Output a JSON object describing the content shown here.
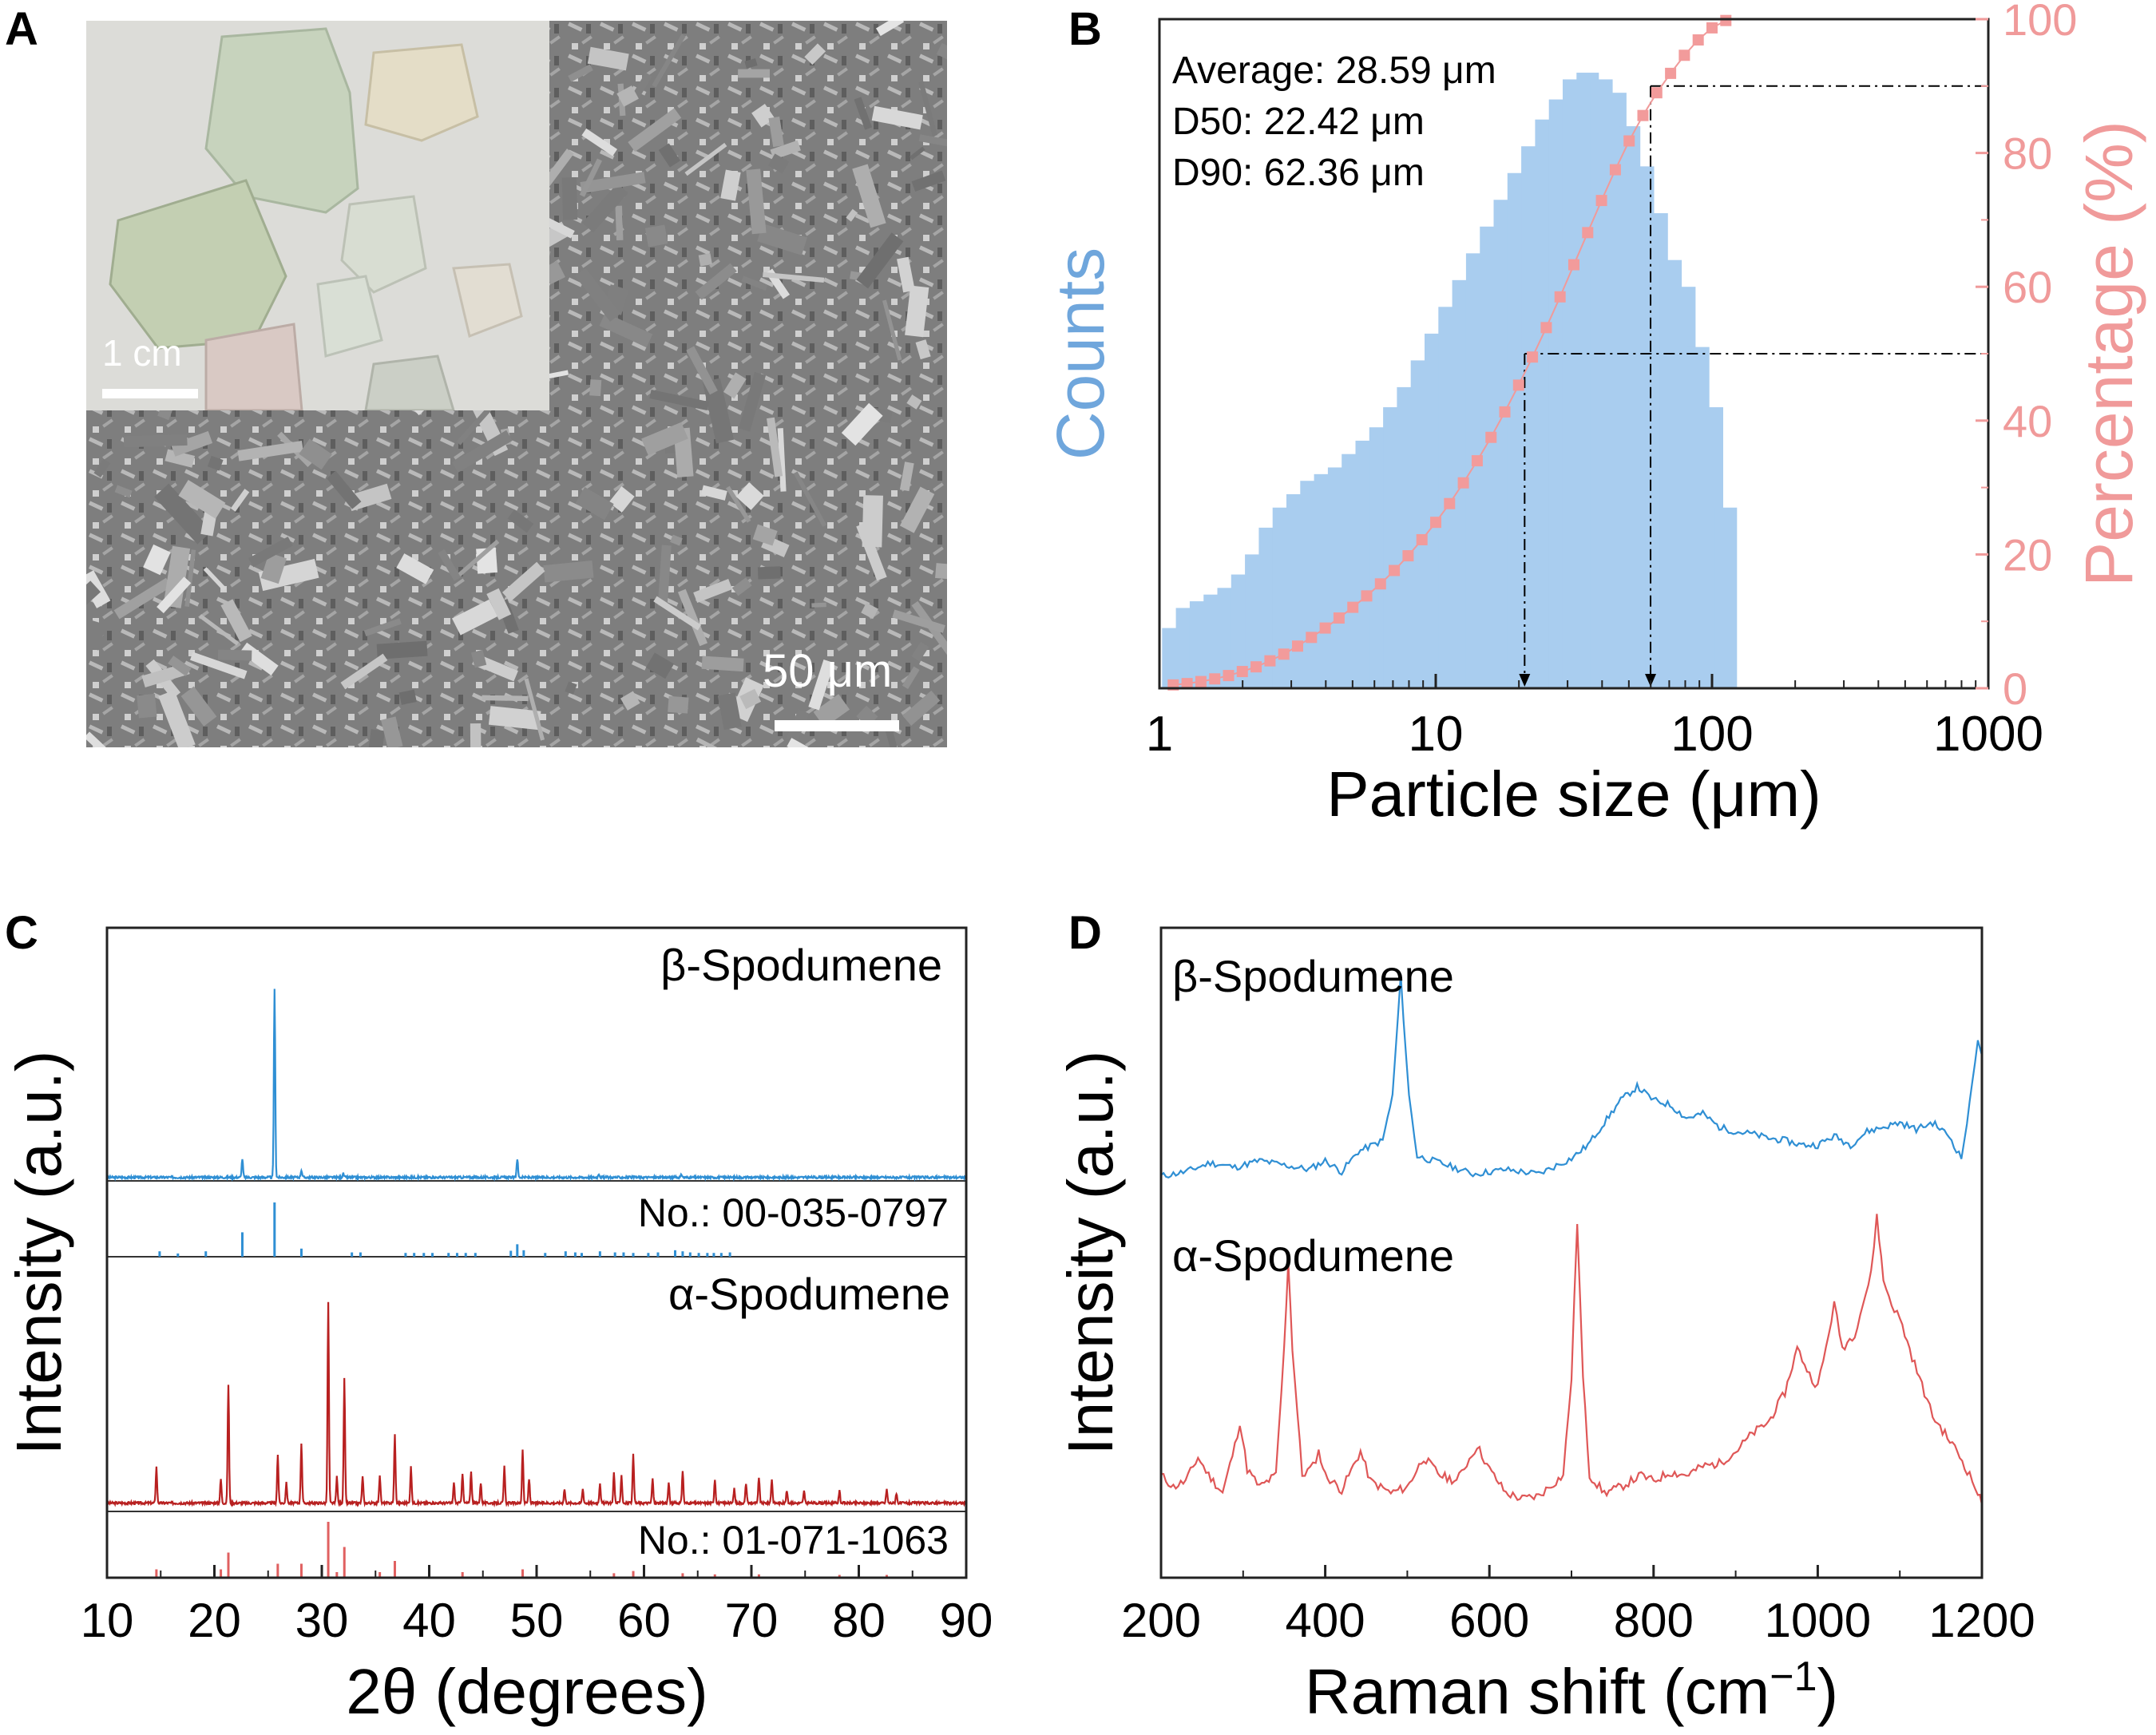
{
  "colors": {
    "blue": "#2f8fd4",
    "bar_blue": "#a9cdef",
    "counts_label": "#6fa6dc",
    "pink": "#f09a9a",
    "pink_marker": "#f29b9b",
    "dark_red": "#b82020",
    "red_ref": "#e06060",
    "raman_red": "#df5757"
  },
  "panels": {
    "a": {
      "label": "A",
      "inset_scale": "1 cm",
      "sem_scale": "50 μm"
    },
    "b": {
      "label": "B",
      "stat_average": "Average: 28.59 μm",
      "stat_d50": "D50: 22.42 μm",
      "stat_d90": "D90: 62.36 μm"
    },
    "c": {
      "label": "C"
    },
    "d": {
      "label": "D"
    }
  },
  "chart_data": [
    {
      "id": "B",
      "type": "bar",
      "xscale": "log",
      "xlabel": "Particle size (μm)",
      "ylabel_left": "Counts",
      "ylabel_right": "Percentage (%)",
      "xlim": [
        1,
        1000
      ],
      "xticks": [
        "1",
        "10",
        "100",
        "1000"
      ],
      "ylim_right": [
        0,
        100
      ],
      "yticks_right": [
        "0",
        "20",
        "40",
        "60",
        "80",
        "100"
      ],
      "bins": [
        1.0,
        1.122,
        1.259,
        1.413,
        1.585,
        1.778,
        1.995,
        2.239,
        2.512,
        2.818,
        3.162,
        3.548,
        3.981,
        4.467,
        5.012,
        5.623,
        6.31,
        7.079,
        7.943,
        8.913,
        10.0,
        11.22,
        12.59,
        14.13,
        15.85,
        17.78,
        19.95,
        22.39,
        25.12,
        28.18,
        31.62,
        35.48,
        39.81,
        44.67,
        50.12,
        56.23,
        63.1,
        70.79,
        79.43,
        89.13,
        100.0
      ],
      "counts": [
        9,
        12,
        13,
        14,
        15,
        17,
        20,
        24,
        27,
        29,
        31,
        32,
        33,
        35,
        37,
        39,
        42,
        45,
        49,
        53,
        57,
        61,
        65,
        69,
        73,
        77,
        81,
        85,
        88,
        91,
        92,
        91,
        89,
        84,
        78,
        71,
        64,
        60,
        51,
        42,
        27
      ],
      "cumulative_percent": [
        0.5,
        0.7,
        1.0,
        1.4,
        1.9,
        2.5,
        3.2,
        4.1,
        5.1,
        6.3,
        7.6,
        9.0,
        10.5,
        12.1,
        13.8,
        15.6,
        17.6,
        19.8,
        22.2,
        24.8,
        27.6,
        30.7,
        34.0,
        37.5,
        41.3,
        45.3,
        49.5,
        53.9,
        58.5,
        63.3,
        68.1,
        72.9,
        77.5,
        81.8,
        85.6,
        89.0,
        91.9,
        94.6,
        96.9,
        98.7,
        99.8
      ],
      "d50": 22.42,
      "d90": 62.36,
      "reference_levels_percent": [
        50,
        90
      ]
    },
    {
      "id": "C",
      "type": "line",
      "xlabel": "2θ (degrees)",
      "ylabel": "Intensity (a.u.)",
      "xlim": [
        10,
        90
      ],
      "xticks": [
        "10",
        "20",
        "30",
        "40",
        "50",
        "60",
        "70",
        "80",
        "90"
      ],
      "series": [
        {
          "name": "β-Spodumene",
          "peaks": [
            [
              22.6,
              0.1
            ],
            [
              25.6,
              1.0
            ],
            [
              28.1,
              0.04
            ],
            [
              48.2,
              0.1
            ],
            [
              32.0,
              0.02
            ],
            [
              55.8,
              0.02
            ],
            [
              63.5,
              0.015
            ]
          ]
        },
        {
          "name": "α-Spodumene",
          "peaks": [
            [
              14.6,
              0.18
            ],
            [
              20.6,
              0.12
            ],
            [
              21.3,
              0.59
            ],
            [
              25.9,
              0.24
            ],
            [
              26.7,
              0.1
            ],
            [
              28.1,
              0.3
            ],
            [
              30.6,
              1.0
            ],
            [
              31.4,
              0.13
            ],
            [
              32.1,
              0.62
            ],
            [
              33.8,
              0.13
            ],
            [
              35.4,
              0.14
            ],
            [
              36.8,
              0.34
            ],
            [
              38.3,
              0.18
            ],
            [
              42.3,
              0.1
            ],
            [
              43.1,
              0.15
            ],
            [
              43.9,
              0.16
            ],
            [
              44.8,
              0.1
            ],
            [
              47.0,
              0.18
            ],
            [
              48.7,
              0.26
            ],
            [
              49.3,
              0.12
            ],
            [
              52.6,
              0.07
            ],
            [
              54.3,
              0.07
            ],
            [
              55.9,
              0.1
            ],
            [
              57.2,
              0.15
            ],
            [
              57.9,
              0.14
            ],
            [
              59.0,
              0.24
            ],
            [
              60.8,
              0.12
            ],
            [
              62.3,
              0.1
            ],
            [
              63.6,
              0.16
            ],
            [
              66.6,
              0.12
            ],
            [
              68.4,
              0.07
            ],
            [
              69.5,
              0.1
            ],
            [
              70.7,
              0.13
            ],
            [
              71.9,
              0.12
            ],
            [
              73.3,
              0.06
            ],
            [
              74.9,
              0.06
            ],
            [
              78.2,
              0.06
            ],
            [
              82.6,
              0.07
            ],
            [
              83.5,
              0.05
            ]
          ]
        }
      ],
      "reference_patterns": [
        {
          "name": "No.: 00-035-0797",
          "lines": [
            [
              14.9,
              0.1
            ],
            [
              16.6,
              0.06
            ],
            [
              19.2,
              0.1
            ],
            [
              22.6,
              0.45
            ],
            [
              25.6,
              1.0
            ],
            [
              28.1,
              0.15
            ],
            [
              32.8,
              0.08
            ],
            [
              33.6,
              0.08
            ],
            [
              37.8,
              0.07
            ],
            [
              38.6,
              0.07
            ],
            [
              39.5,
              0.07
            ],
            [
              40.3,
              0.07
            ],
            [
              41.8,
              0.07
            ],
            [
              42.6,
              0.07
            ],
            [
              43.4,
              0.07
            ],
            [
              44.3,
              0.07
            ],
            [
              47.6,
              0.11
            ],
            [
              48.2,
              0.23
            ],
            [
              48.8,
              0.12
            ],
            [
              50.8,
              0.07
            ],
            [
              52.7,
              0.1
            ],
            [
              53.6,
              0.08
            ],
            [
              54.2,
              0.07
            ],
            [
              55.9,
              0.1
            ],
            [
              57.3,
              0.08
            ],
            [
              58.1,
              0.08
            ],
            [
              59.0,
              0.07
            ],
            [
              60.4,
              0.07
            ],
            [
              61.3,
              0.08
            ],
            [
              62.9,
              0.12
            ],
            [
              63.6,
              0.1
            ],
            [
              64.3,
              0.08
            ],
            [
              65.1,
              0.07
            ],
            [
              65.9,
              0.07
            ],
            [
              66.5,
              0.07
            ],
            [
              67.2,
              0.07
            ],
            [
              68.0,
              0.08
            ]
          ]
        },
        {
          "name": "No.: 01-071-1063",
          "lines": [
            [
              14.6,
              0.15
            ],
            [
              20.6,
              0.15
            ],
            [
              21.3,
              0.45
            ],
            [
              25.9,
              0.25
            ],
            [
              28.1,
              0.25
            ],
            [
              30.6,
              1.0
            ],
            [
              31.4,
              0.1
            ],
            [
              32.1,
              0.55
            ],
            [
              35.4,
              0.1
            ],
            [
              36.8,
              0.3
            ],
            [
              43.1,
              0.1
            ],
            [
              48.7,
              0.15
            ],
            [
              57.2,
              0.08
            ],
            [
              59.0,
              0.12
            ],
            [
              63.6,
              0.08
            ],
            [
              66.6,
              0.06
            ],
            [
              70.7,
              0.06
            ],
            [
              78.2,
              0.05
            ],
            [
              82.6,
              0.05
            ]
          ]
        }
      ]
    },
    {
      "id": "D",
      "type": "line",
      "xlabel": "Raman shift (cm−1)",
      "xlabel_sup": "−1",
      "ylabel": "Intensity (a.u.)",
      "xlim": [
        200,
        1200
      ],
      "xticks": [
        "200",
        "400",
        "600",
        "800",
        "1000",
        "1200"
      ],
      "series": [
        {
          "name": "β-Spodumene",
          "points": [
            [
              200,
              0.06
            ],
            [
              230,
              0.08
            ],
            [
              260,
              0.12
            ],
            [
              290,
              0.1
            ],
            [
              320,
              0.13
            ],
            [
              350,
              0.11
            ],
            [
              380,
              0.09
            ],
            [
              400,
              0.13
            ],
            [
              420,
              0.08
            ],
            [
              440,
              0.17
            ],
            [
              470,
              0.22
            ],
            [
              482,
              0.42
            ],
            [
              492,
              0.95
            ],
            [
              502,
              0.42
            ],
            [
              512,
              0.15
            ],
            [
              540,
              0.12
            ],
            [
              580,
              0.07
            ],
            [
              620,
              0.09
            ],
            [
              660,
              0.07
            ],
            [
              700,
              0.14
            ],
            [
              720,
              0.2
            ],
            [
              740,
              0.3
            ],
            [
              760,
              0.4
            ],
            [
              780,
              0.46
            ],
            [
              800,
              0.4
            ],
            [
              820,
              0.38
            ],
            [
              840,
              0.32
            ],
            [
              860,
              0.34
            ],
            [
              880,
              0.28
            ],
            [
              900,
              0.26
            ],
            [
              920,
              0.25
            ],
            [
              940,
              0.23
            ],
            [
              960,
              0.22
            ],
            [
              980,
              0.2
            ],
            [
              1000,
              0.2
            ],
            [
              1020,
              0.24
            ],
            [
              1040,
              0.2
            ],
            [
              1060,
              0.26
            ],
            [
              1080,
              0.28
            ],
            [
              1100,
              0.3
            ],
            [
              1120,
              0.27
            ],
            [
              1140,
              0.3
            ],
            [
              1160,
              0.24
            ],
            [
              1175,
              0.14
            ],
            [
              1185,
              0.38
            ],
            [
              1195,
              0.68
            ],
            [
              1200,
              0.6
            ]
          ]
        },
        {
          "name": "α-Spodumene",
          "points": [
            [
              200,
              0.12
            ],
            [
              215,
              0.08
            ],
            [
              230,
              0.1
            ],
            [
              245,
              0.18
            ],
            [
              258,
              0.12
            ],
            [
              275,
              0.06
            ],
            [
              290,
              0.22
            ],
            [
              296,
              0.3
            ],
            [
              305,
              0.14
            ],
            [
              320,
              0.08
            ],
            [
              340,
              0.12
            ],
            [
              350,
              0.55
            ],
            [
              355,
              0.85
            ],
            [
              360,
              0.55
            ],
            [
              372,
              0.12
            ],
            [
              385,
              0.15
            ],
            [
              392,
              0.2
            ],
            [
              400,
              0.12
            ],
            [
              420,
              0.07
            ],
            [
              443,
              0.2
            ],
            [
              455,
              0.1
            ],
            [
              480,
              0.06
            ],
            [
              500,
              0.08
            ],
            [
              520,
              0.18
            ],
            [
              540,
              0.12
            ],
            [
              560,
              0.1
            ],
            [
              585,
              0.22
            ],
            [
              600,
              0.14
            ],
            [
              620,
              0.06
            ],
            [
              640,
              0.04
            ],
            [
              660,
              0.05
            ],
            [
              690,
              0.12
            ],
            [
              700,
              0.45
            ],
            [
              707,
              0.98
            ],
            [
              714,
              0.45
            ],
            [
              722,
              0.12
            ],
            [
              740,
              0.06
            ],
            [
              760,
              0.08
            ],
            [
              785,
              0.12
            ],
            [
              800,
              0.1
            ],
            [
              820,
              0.13
            ],
            [
              840,
              0.12
            ],
            [
              860,
              0.15
            ],
            [
              880,
              0.16
            ],
            [
              900,
              0.2
            ],
            [
              920,
              0.26
            ],
            [
              940,
              0.3
            ],
            [
              960,
              0.4
            ],
            [
              975,
              0.55
            ],
            [
              990,
              0.46
            ],
            [
              1000,
              0.42
            ],
            [
              1010,
              0.55
            ],
            [
              1020,
              0.7
            ],
            [
              1030,
              0.55
            ],
            [
              1045,
              0.6
            ],
            [
              1055,
              0.7
            ],
            [
              1065,
              0.8
            ],
            [
              1072,
              1.0
            ],
            [
              1080,
              0.78
            ],
            [
              1090,
              0.7
            ],
            [
              1100,
              0.65
            ],
            [
              1115,
              0.52
            ],
            [
              1130,
              0.4
            ],
            [
              1140,
              0.32
            ],
            [
              1155,
              0.26
            ],
            [
              1170,
              0.2
            ],
            [
              1185,
              0.12
            ],
            [
              1195,
              0.06
            ],
            [
              1200,
              0.02
            ]
          ]
        }
      ]
    }
  ]
}
